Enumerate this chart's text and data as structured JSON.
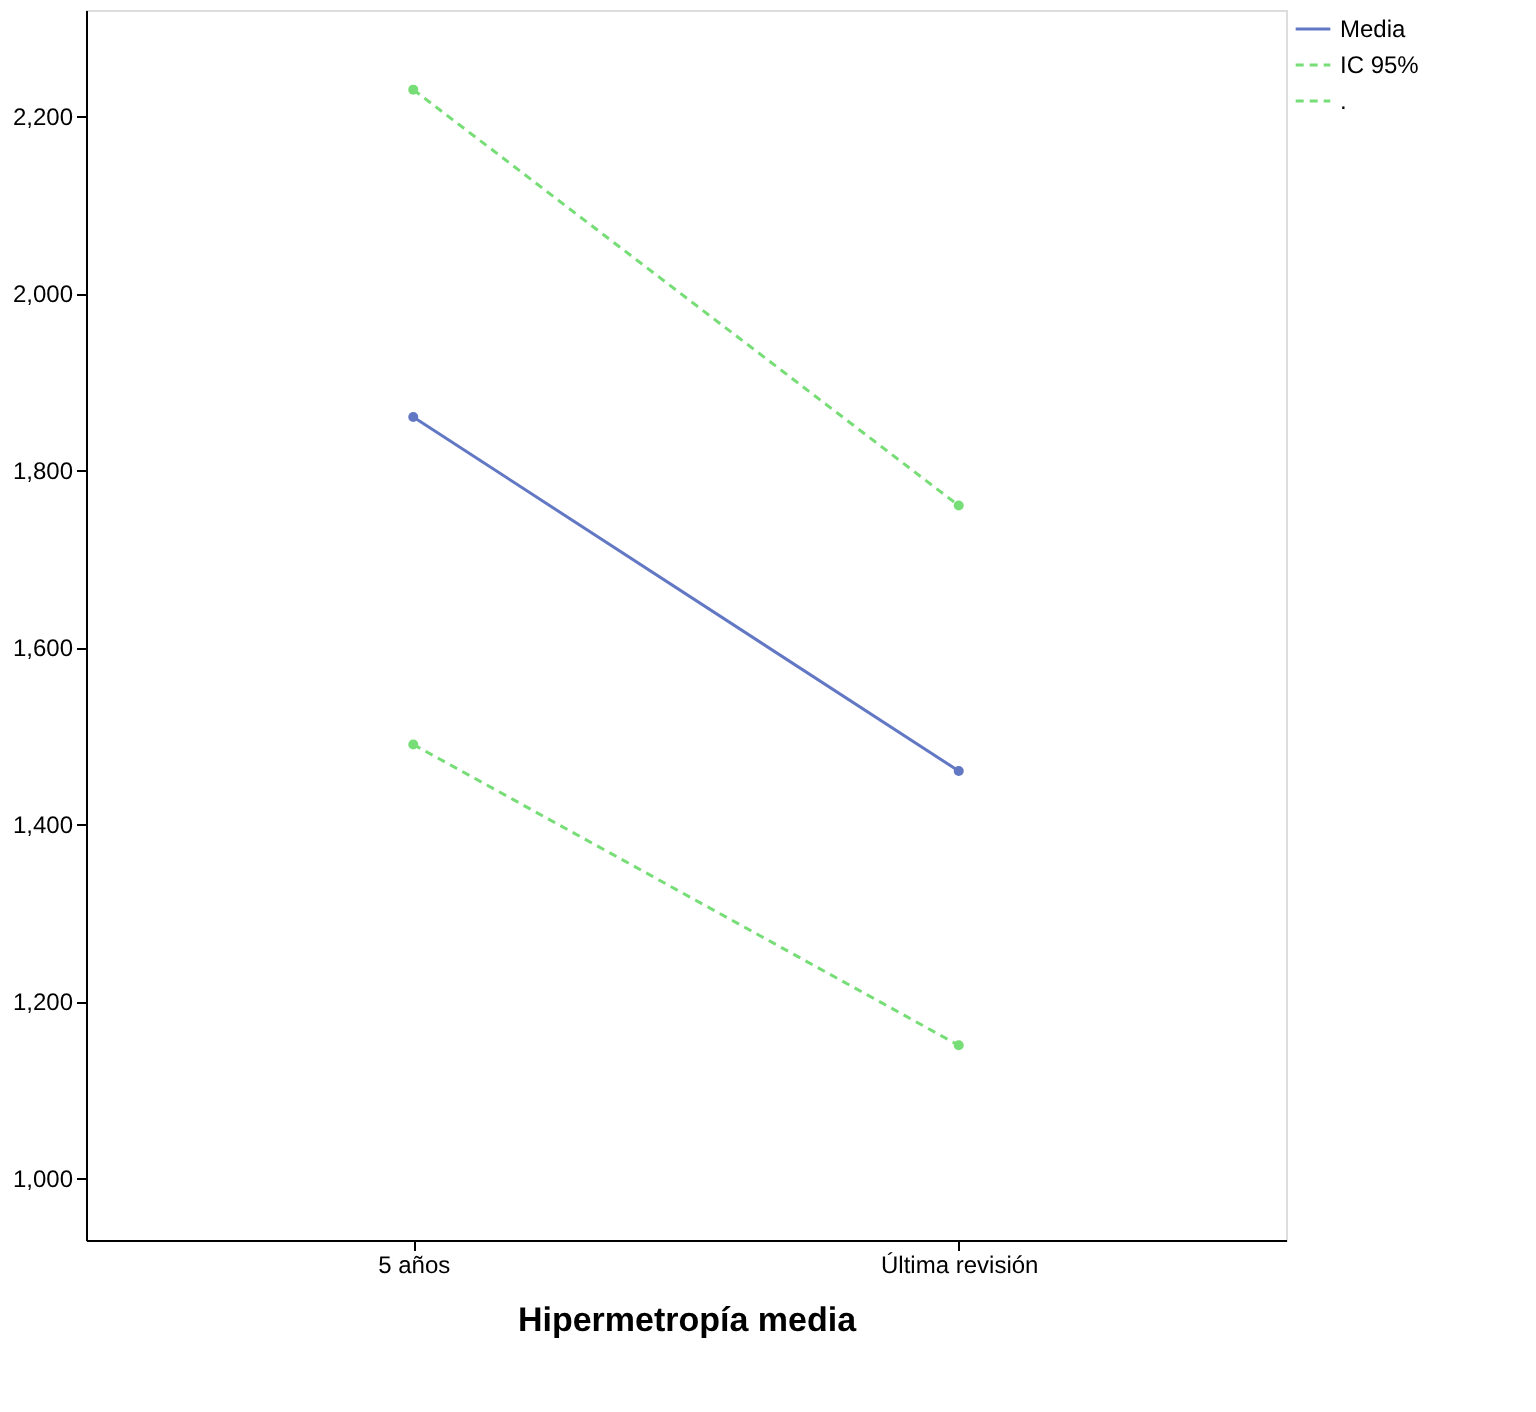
{
  "chart_data": {
    "type": "line",
    "xlabel": "Hipermetropía media",
    "categories": [
      "5 años",
      "Última revisión"
    ],
    "series": [
      {
        "name": "Media",
        "color": "#6278c4",
        "values": [
          1860,
          1460
        ],
        "line_style": "solid"
      },
      {
        "name": "IC 95%",
        "color": "#77dd77",
        "values": [
          2230,
          1760
        ],
        "line_style": "dashed"
      },
      {
        "name": ".",
        "color": "#77dd77",
        "values": [
          1490,
          1150
        ],
        "line_style": "dashed"
      }
    ],
    "ylim": [
      930,
      2320
    ],
    "yticks": [
      {
        "value": 1000,
        "label": "1,000"
      },
      {
        "value": 1200,
        "label": "1,200"
      },
      {
        "value": 1400,
        "label": "1,400"
      },
      {
        "value": 1600,
        "label": "1,600"
      },
      {
        "value": 1800,
        "label": "1,800"
      },
      {
        "value": 2000,
        "label": "2,000"
      },
      {
        "value": 2200,
        "label": "2,200"
      }
    ],
    "marker": "circle",
    "grid": false,
    "legend": "top right"
  }
}
